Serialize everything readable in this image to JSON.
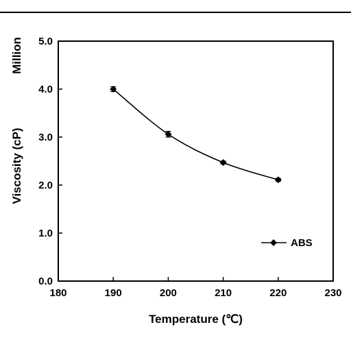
{
  "chart_data": {
    "type": "line",
    "x": [
      190,
      200,
      210,
      220
    ],
    "series": [
      {
        "name": "ABS",
        "values": [
          4.0,
          3.06,
          2.47,
          2.11
        ],
        "error": [
          0.05,
          0.06,
          0.03,
          0.03
        ],
        "marker": "diamond",
        "smooth": true,
        "color": "#000000"
      }
    ],
    "xlabel": "Temperature (℃)",
    "ylabel": "Viscosity (cP)",
    "y_multiplier_label": "Million",
    "xlim": [
      180,
      230
    ],
    "ylim": [
      0,
      5.0
    ],
    "x_ticks": [
      "180",
      "190",
      "200",
      "210",
      "220",
      "230"
    ],
    "y_ticks": [
      "0.0",
      "1.0",
      "2.0",
      "3.0",
      "4.0",
      "5.0"
    ],
    "grid": false,
    "legend_position": "bottom-right"
  }
}
